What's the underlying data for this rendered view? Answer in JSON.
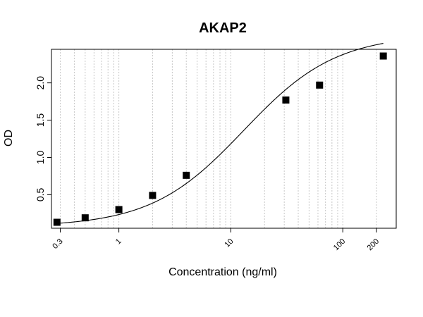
{
  "chart_data": {
    "type": "scatter",
    "title": "AKAP2",
    "xlabel": "Concentration (ng/ml)",
    "ylabel": "OD",
    "x_scale": "log",
    "xlim": [
      0.25,
      300
    ],
    "ylim": [
      0.05,
      2.45
    ],
    "grid": "vertical dashed",
    "x_ticks": [
      {
        "value": 0.3,
        "label": "0.3"
      },
      {
        "value": 1,
        "label": "1"
      },
      {
        "value": 10,
        "label": "10"
      },
      {
        "value": 100,
        "label": "100"
      },
      {
        "value": 200,
        "label": "200"
      }
    ],
    "y_ticks": [
      {
        "value": 0.5,
        "label": "0.5"
      },
      {
        "value": 1.0,
        "label": "1.0"
      },
      {
        "value": 1.5,
        "label": "1.5"
      },
      {
        "value": 2.0,
        "label": "2.0"
      }
    ],
    "series": [
      {
        "marker": "square",
        "color": "#000000",
        "x": [
          0.28,
          0.5,
          1,
          2,
          4,
          31,
          62,
          230
        ],
        "y": [
          0.13,
          0.19,
          0.3,
          0.49,
          0.76,
          1.77,
          1.97,
          2.36
        ]
      }
    ],
    "fit_curve": {
      "model": "4PL",
      "color": "#000000",
      "A": 0.07,
      "D": 2.65,
      "C": 13,
      "B": 1.05
    }
  }
}
